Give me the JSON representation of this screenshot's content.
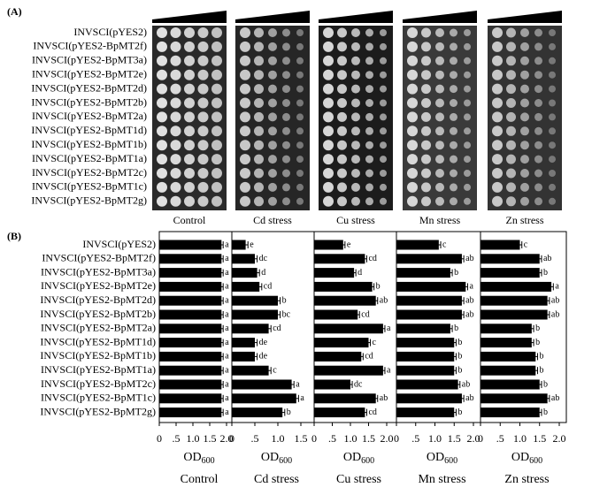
{
  "panel_a": {
    "label": "(A)",
    "strains": [
      "INVSCI(pYES2)",
      "INVSCI(pYES2-BpMT2f)",
      "INVSCI(pYES2-BpMT3a)",
      "INVSCI(pYES2-BpMT2e)",
      "INVSCI(pYES2-BpMT2d)",
      "INVSCI(pYES2-BpMT2b)",
      "INVSCI(pYES2-BpMT2a)",
      "INVSCI(pYES2-BpMT1d)",
      "INVSCI(pYES2-BpMT1b)",
      "INVSCI(pYES2-BpMT1a)",
      "INVSCI(pYES2-BpMT2c)",
      "INVSCI(pYES2-BpMT1c)",
      "INVSCI(pYES2-BpMT2g)"
    ],
    "conditions": [
      "Control",
      "Cd stress",
      "Cu stress",
      "Mn stress",
      "Zn stress"
    ]
  },
  "panel_b": {
    "label": "(B)"
  },
  "chart_data": [
    {
      "type": "bar",
      "orientation": "horizontal",
      "title": "Control",
      "xlabel": {
        "main": "OD",
        "sub": "600"
      },
      "color": "#000000",
      "categories": [
        "INVSCI(pYES2)",
        "INVSCI(pYES2-BpMT2f)",
        "INVSCI(pYES2-BpMT3a)",
        "INVSCI(pYES2-BpMT2e)",
        "INVSCI(pYES2-BpMT2d)",
        "INVSCI(pYES2-BpMT2b)",
        "INVSCI(pYES2-BpMT2a)",
        "INVSCI(pYES2-BpMT1d)",
        "INVSCI(pYES2-BpMT1b)",
        "INVSCI(pYES2-BpMT1a)",
        "INVSCI(pYES2-BpMT2c)",
        "INVSCI(pYES2-BpMT1c)",
        "INVSCI(pYES2-BpMT2g)"
      ],
      "values": [
        1.85,
        1.85,
        1.85,
        1.85,
        1.85,
        1.85,
        1.85,
        1.85,
        1.85,
        1.85,
        1.85,
        1.85,
        1.85
      ],
      "errors": [
        0.05,
        0.05,
        0.05,
        0.05,
        0.05,
        0.05,
        0.05,
        0.05,
        0.05,
        0.05,
        0.05,
        0.05,
        0.05
      ],
      "letters": [
        "a",
        "a",
        "a",
        "a",
        "a",
        "a",
        "a",
        "a",
        "a",
        "a",
        "a",
        "a",
        "a"
      ],
      "xlim": [
        0,
        2
      ],
      "xticks": [
        0,
        {
          "value": 0.5,
          "label": ".5"
        },
        {
          "value": 1,
          "label": "1.0"
        },
        1.5,
        {
          "value": 2,
          "label": "2.0"
        }
      ]
    },
    {
      "type": "bar",
      "orientation": "horizontal",
      "title": "Cd stress",
      "xlabel": {
        "main": "OD",
        "sub": "600"
      },
      "color": "#000000",
      "values": [
        0.3,
        0.5,
        0.55,
        0.6,
        1.0,
        1.0,
        0.8,
        0.5,
        0.5,
        0.8,
        1.3,
        1.4,
        1.1
      ],
      "errors": [
        0.05,
        0.05,
        0.05,
        0.05,
        0.05,
        0.05,
        0.05,
        0.05,
        0.05,
        0.05,
        0.05,
        0.05,
        0.05
      ],
      "letters": [
        "e",
        "dc",
        "d",
        "cd",
        "b",
        "bc",
        "cd",
        "de",
        "de",
        "c",
        "a",
        "a",
        "b"
      ],
      "xlim": [
        0,
        1.5
      ],
      "xticks": [
        0,
        {
          "value": 0.5,
          "label": ".5"
        },
        {
          "value": 1,
          "label": "1.0"
        },
        1.5
      ]
    },
    {
      "type": "bar",
      "orientation": "horizontal",
      "title": "Cu stress",
      "xlabel": {
        "main": "OD",
        "sub": "600"
      },
      "color": "#000000",
      "values": [
        0.8,
        1.4,
        1.1,
        1.6,
        1.7,
        1.2,
        1.9,
        1.5,
        1.3,
        1.9,
        1.0,
        1.7,
        1.4
      ],
      "errors": [
        0.05,
        0.05,
        0.05,
        0.05,
        0.05,
        0.05,
        0.05,
        0.05,
        0.05,
        0.05,
        0.05,
        0.05,
        0.05
      ],
      "letters": [
        "e",
        "cd",
        "d",
        "b",
        "ab",
        "cd",
        "a",
        "c",
        "cd",
        "a",
        "dc",
        "ab",
        "cd"
      ],
      "xlim": [
        0,
        2
      ],
      "xticks": [
        0,
        {
          "value": 0.5,
          "label": ".5"
        },
        {
          "value": 1,
          "label": "1.0"
        },
        1.5,
        {
          "value": 2,
          "label": "2.0"
        }
      ]
    },
    {
      "type": "bar",
      "orientation": "horizontal",
      "title": "Mn stress",
      "xlabel": {
        "main": "OD",
        "sub": "600"
      },
      "color": "#000000",
      "values": [
        1.1,
        1.7,
        1.4,
        1.8,
        1.7,
        1.7,
        1.4,
        1.5,
        1.5,
        1.5,
        1.6,
        1.7,
        1.5
      ],
      "errors": [
        0.05,
        0.05,
        0.05,
        0.05,
        0.05,
        0.05,
        0.05,
        0.05,
        0.05,
        0.05,
        0.05,
        0.05,
        0.05
      ],
      "letters": [
        "c",
        "ab",
        "b",
        "a",
        "ab",
        "ab",
        "b",
        "b",
        "b",
        "b",
        "ab",
        "ab",
        "b"
      ],
      "xlim": [
        0,
        2
      ],
      "xticks": [
        0,
        {
          "value": 0.5,
          "label": ".5"
        },
        {
          "value": 1,
          "label": "1.0"
        },
        1.5,
        {
          "value": 2,
          "label": "2.0"
        }
      ]
    },
    {
      "type": "bar",
      "orientation": "horizontal",
      "title": "Zn stress",
      "xlabel": {
        "main": "OD",
        "sub": "600"
      },
      "color": "#000000",
      "values": [
        1.0,
        1.5,
        1.5,
        1.8,
        1.7,
        1.7,
        1.3,
        1.3,
        1.4,
        1.4,
        1.5,
        1.7,
        1.5
      ],
      "errors": [
        0.05,
        0.05,
        0.05,
        0.05,
        0.05,
        0.05,
        0.05,
        0.05,
        0.05,
        0.05,
        0.05,
        0.05,
        0.05
      ],
      "letters": [
        "c",
        "ab",
        "b",
        "a",
        "ab",
        "ab",
        "b",
        "b",
        "b",
        "b",
        "b",
        "ab",
        "b"
      ],
      "xlim": [
        0,
        2
      ],
      "xticks": [
        0,
        {
          "value": 0.5,
          "label": ".5"
        },
        {
          "value": 1,
          "label": "1.0"
        },
        1.5,
        {
          "value": 2,
          "label": "2.0"
        }
      ]
    }
  ]
}
